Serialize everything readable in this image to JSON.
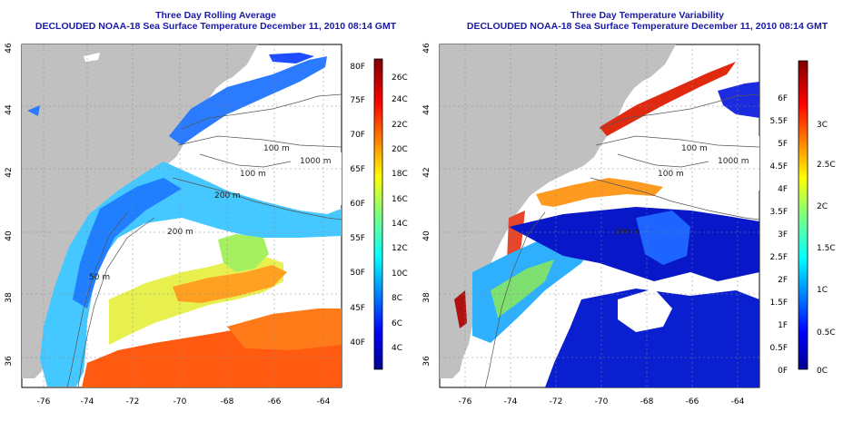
{
  "left_panel": {
    "title_line1": "Three Day Rolling Average",
    "title_line2": "DECLOUDED NOAA-18 Sea Surface Temperature December 11, 2010 08:14 GMT",
    "colorbar_f_labels": [
      "40F",
      "45F",
      "50F",
      "55F",
      "60F",
      "65F",
      "70F",
      "75F",
      "80F"
    ],
    "colorbar_c_labels": [
      "4C",
      "6C",
      "8C",
      "10C",
      "12C",
      "14C",
      "16C",
      "18C",
      "20C",
      "22C",
      "24C",
      "26C"
    ],
    "contour_labels": [
      "100 m",
      "100 m",
      "1000 m",
      "200 m",
      "200 m",
      "50 m"
    ]
  },
  "right_panel": {
    "title_line1": "Three Day Temperature Variability",
    "title_line2": "DECLOUDED NOAA-18 Sea Surface Temperature December 11, 2010 08:14 GMT",
    "colorbar_f_labels": [
      "0F",
      "0.5F",
      "1F",
      "1.5F",
      "2F",
      "2.5F",
      "3F",
      "3.5F",
      "4F",
      "4.5F",
      "5F",
      "5.5F",
      "6F"
    ],
    "colorbar_c_labels": [
      "0C",
      "0.5C",
      "1C",
      "1.5C",
      "2C",
      "2.5C",
      "3C"
    ],
    "contour_labels": [
      "100 m",
      "100 m",
      "1000 m",
      "200 m"
    ]
  },
  "axes": {
    "lon_labels": [
      "-76",
      "-74",
      "-72",
      "-70",
      "-68",
      "-66",
      "-64"
    ],
    "lat_labels": [
      "36",
      "38",
      "40",
      "42",
      "44",
      "46"
    ]
  },
  "colors": {
    "title": "#1a1aa6",
    "land": "#c0c0c0",
    "ocean_blank": "#ffffff"
  }
}
